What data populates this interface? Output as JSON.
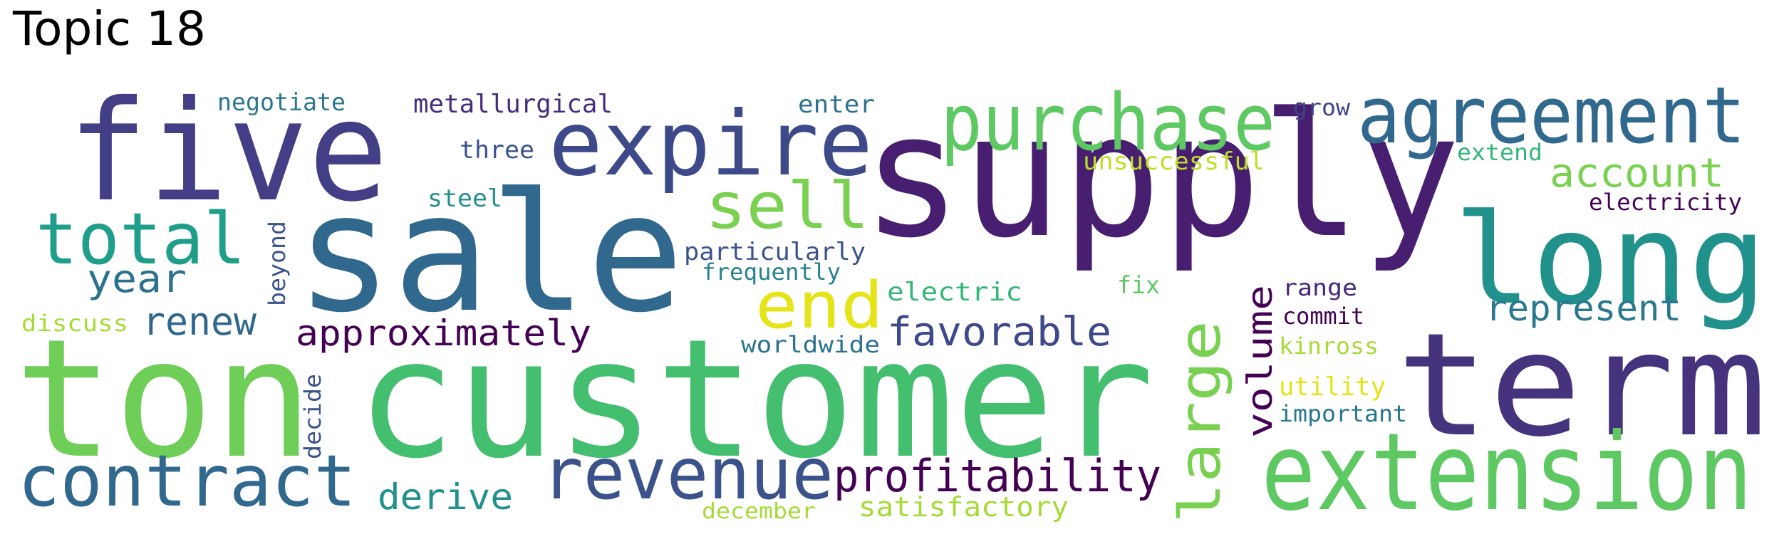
{
  "title": "Topic 18",
  "words": [
    {
      "text": "supply",
      "color": "#481f70"
    },
    {
      "text": "customer",
      "color": "#44bf70"
    },
    {
      "text": "ton",
      "color": "#6ece58"
    },
    {
      "text": "sale",
      "color": "#31688e"
    },
    {
      "text": "term",
      "color": "#46337e"
    },
    {
      "text": "five",
      "color": "#433e85"
    },
    {
      "text": "long",
      "color": "#21918c"
    },
    {
      "text": "extension",
      "color": "#5ec962"
    },
    {
      "text": "expire",
      "color": "#3e4989"
    },
    {
      "text": "agreement",
      "color": "#31688e"
    },
    {
      "text": "purchase",
      "color": "#5ec962"
    },
    {
      "text": "contract",
      "color": "#31688e"
    },
    {
      "text": "revenue",
      "color": "#3b528b"
    },
    {
      "text": "total",
      "color": "#1f9e89"
    },
    {
      "text": "sell",
      "color": "#7ad151"
    },
    {
      "text": "end",
      "color": "#e5e419"
    },
    {
      "text": "large",
      "color": "#7ad151"
    },
    {
      "text": "profitability",
      "color": "#440154"
    },
    {
      "text": "favorable",
      "color": "#3e4989"
    },
    {
      "text": "approximately",
      "color": "#440154"
    },
    {
      "text": "account",
      "color": "#7ad151"
    },
    {
      "text": "represent",
      "color": "#2a788e"
    },
    {
      "text": "year",
      "color": "#2c728e"
    },
    {
      "text": "renew",
      "color": "#31688e"
    },
    {
      "text": "derive",
      "color": "#21918c"
    },
    {
      "text": "volume",
      "color": "#440154"
    },
    {
      "text": "satisfactory",
      "color": "#a5db36"
    },
    {
      "text": "metallurgical",
      "color": "#472d7b"
    },
    {
      "text": "negotiate",
      "color": "#2a788e"
    },
    {
      "text": "enter",
      "color": "#2c728e"
    },
    {
      "text": "three",
      "color": "#3b528b"
    },
    {
      "text": "unsuccessful",
      "color": "#bddf26"
    },
    {
      "text": "grow",
      "color": "#414487"
    },
    {
      "text": "extend",
      "color": "#35b779"
    },
    {
      "text": "electricity",
      "color": "#440154"
    },
    {
      "text": "steel",
      "color": "#21918c"
    },
    {
      "text": "particularly",
      "color": "#3b528b"
    },
    {
      "text": "frequently",
      "color": "#26828e"
    },
    {
      "text": "electric",
      "color": "#35b779"
    },
    {
      "text": "fix",
      "color": "#5ec962"
    },
    {
      "text": "range",
      "color": "#482878"
    },
    {
      "text": "commit",
      "color": "#440154"
    },
    {
      "text": "kinross",
      "color": "#a5db36"
    },
    {
      "text": "utility",
      "color": "#e5e419"
    },
    {
      "text": "important",
      "color": "#2a788e"
    },
    {
      "text": "worldwide",
      "color": "#2c728e"
    },
    {
      "text": "discuss",
      "color": "#a5db36"
    },
    {
      "text": "beyond",
      "color": "#3b528b"
    },
    {
      "text": "decide",
      "color": "#3b528b"
    },
    {
      "text": "december",
      "color": "#a5db36"
    }
  ]
}
